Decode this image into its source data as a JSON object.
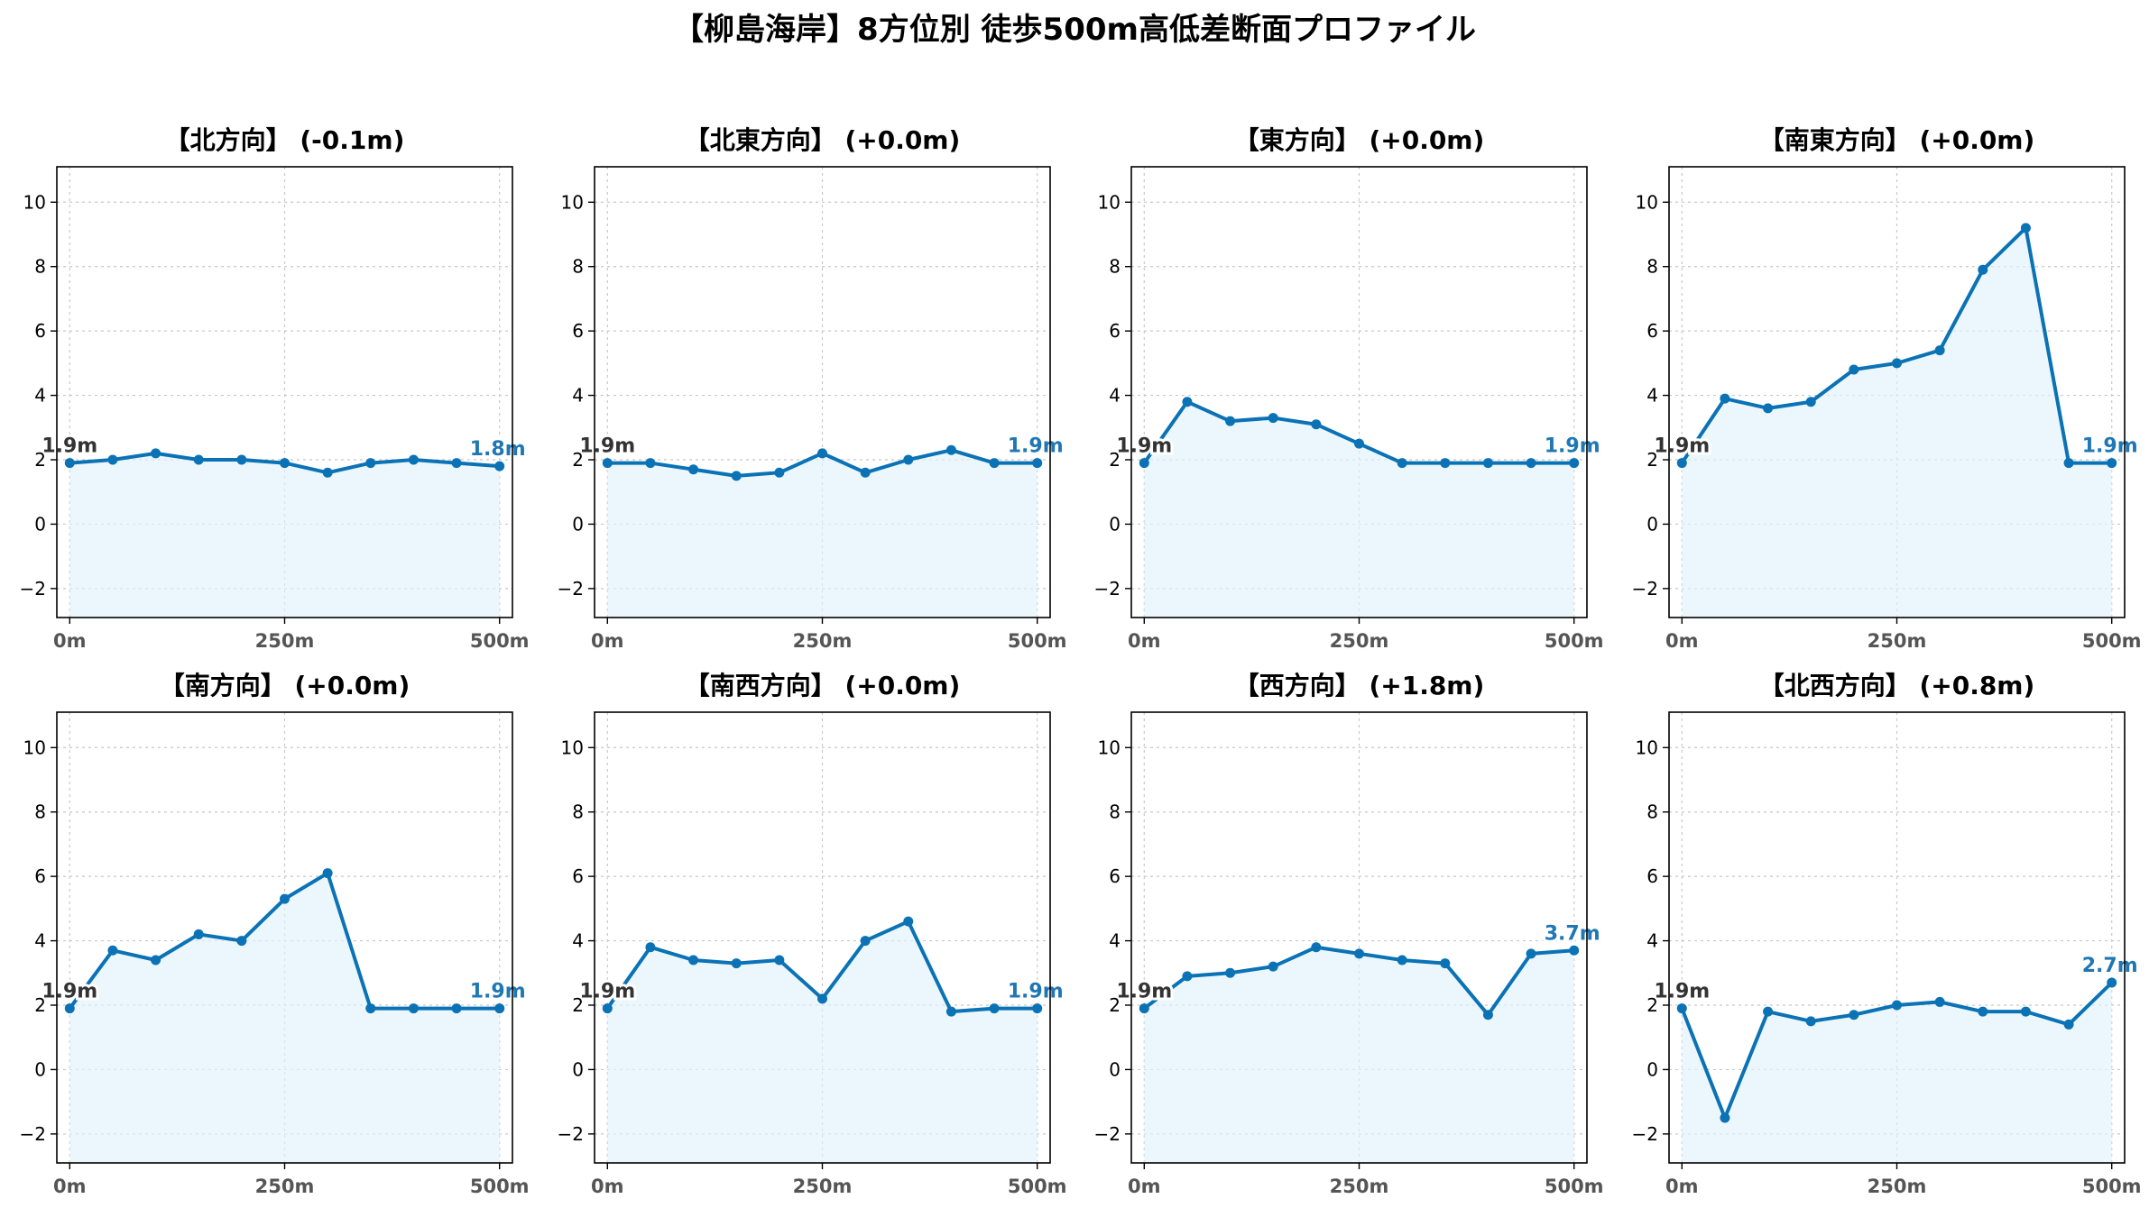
{
  "title": "【柳島海岸】8方位別 徒歩500m高低差断面プロファイル",
  "chart_data": [
    {
      "type": "line",
      "title": "【北方向】 (-0.1m)",
      "x": [
        0,
        50,
        100,
        150,
        200,
        250,
        300,
        350,
        400,
        450,
        500
      ],
      "values": [
        1.9,
        2.0,
        2.2,
        2.0,
        2.0,
        1.9,
        1.6,
        1.9,
        2.0,
        1.9,
        1.8
      ],
      "start_label": "1.9m",
      "end_label": "1.8m",
      "xticks": [
        "0m",
        "250m",
        "500m"
      ],
      "yticks": [
        "−2",
        "0",
        "2",
        "4",
        "6",
        "8",
        "10"
      ],
      "ylim": [
        -2.9,
        11.1
      ],
      "xlim": [
        -15,
        515
      ],
      "grid": true
    },
    {
      "type": "line",
      "title": "【北東方向】 (+0.0m)",
      "x": [
        0,
        50,
        100,
        150,
        200,
        250,
        300,
        350,
        400,
        450,
        500
      ],
      "values": [
        1.9,
        1.9,
        1.7,
        1.5,
        1.6,
        2.2,
        1.6,
        2.0,
        2.3,
        1.9,
        1.9
      ],
      "start_label": "1.9m",
      "end_label": "1.9m",
      "xticks": [
        "0m",
        "250m",
        "500m"
      ],
      "yticks": [
        "−2",
        "0",
        "2",
        "4",
        "6",
        "8",
        "10"
      ],
      "ylim": [
        -2.9,
        11.1
      ],
      "xlim": [
        -15,
        515
      ],
      "grid": true
    },
    {
      "type": "line",
      "title": "【東方向】 (+0.0m)",
      "x": [
        0,
        50,
        100,
        150,
        200,
        250,
        300,
        350,
        400,
        450,
        500
      ],
      "values": [
        1.9,
        3.8,
        3.2,
        3.3,
        3.1,
        2.5,
        1.9,
        1.9,
        1.9,
        1.9,
        1.9
      ],
      "start_label": "1.9m",
      "end_label": "1.9m",
      "xticks": [
        "0m",
        "250m",
        "500m"
      ],
      "yticks": [
        "−2",
        "0",
        "2",
        "4",
        "6",
        "8",
        "10"
      ],
      "ylim": [
        -2.9,
        11.1
      ],
      "xlim": [
        -15,
        515
      ],
      "grid": true
    },
    {
      "type": "line",
      "title": "【南東方向】 (+0.0m)",
      "x": [
        0,
        50,
        100,
        150,
        200,
        250,
        300,
        350,
        400,
        450,
        500
      ],
      "values": [
        1.9,
        3.9,
        3.6,
        3.8,
        4.8,
        5.0,
        5.4,
        7.9,
        9.2,
        1.9,
        1.9
      ],
      "start_label": "1.9m",
      "end_label": "1.9m",
      "xticks": [
        "0m",
        "250m",
        "500m"
      ],
      "yticks": [
        "−2",
        "0",
        "2",
        "4",
        "6",
        "8",
        "10"
      ],
      "ylim": [
        -2.9,
        11.1
      ],
      "xlim": [
        -15,
        515
      ],
      "grid": true
    },
    {
      "type": "line",
      "title": "【南方向】 (+0.0m)",
      "x": [
        0,
        50,
        100,
        150,
        200,
        250,
        300,
        350,
        400,
        450,
        500
      ],
      "values": [
        1.9,
        3.7,
        3.4,
        4.2,
        4.0,
        5.3,
        6.1,
        1.9,
        1.9,
        1.9,
        1.9
      ],
      "start_label": "1.9m",
      "end_label": "1.9m",
      "xticks": [
        "0m",
        "250m",
        "500m"
      ],
      "yticks": [
        "−2",
        "0",
        "2",
        "4",
        "6",
        "8",
        "10"
      ],
      "ylim": [
        -2.9,
        11.1
      ],
      "xlim": [
        -15,
        515
      ],
      "grid": true
    },
    {
      "type": "line",
      "title": "【南西方向】 (+0.0m)",
      "x": [
        0,
        50,
        100,
        150,
        200,
        250,
        300,
        350,
        400,
        450,
        500
      ],
      "values": [
        1.9,
        3.8,
        3.4,
        3.3,
        3.4,
        2.2,
        4.0,
        4.6,
        1.8,
        1.9,
        1.9
      ],
      "start_label": "1.9m",
      "end_label": "1.9m",
      "xticks": [
        "0m",
        "250m",
        "500m"
      ],
      "yticks": [
        "−2",
        "0",
        "2",
        "4",
        "6",
        "8",
        "10"
      ],
      "ylim": [
        -2.9,
        11.1
      ],
      "xlim": [
        -15,
        515
      ],
      "grid": true
    },
    {
      "type": "line",
      "title": "【西方向】 (+1.8m)",
      "x": [
        0,
        50,
        100,
        150,
        200,
        250,
        300,
        350,
        400,
        450,
        500
      ],
      "values": [
        1.9,
        2.9,
        3.0,
        3.2,
        3.8,
        3.6,
        3.4,
        3.3,
        1.7,
        3.6,
        3.7
      ],
      "start_label": "1.9m",
      "end_label": "3.7m",
      "xticks": [
        "0m",
        "250m",
        "500m"
      ],
      "yticks": [
        "−2",
        "0",
        "2",
        "4",
        "6",
        "8",
        "10"
      ],
      "ylim": [
        -2.9,
        11.1
      ],
      "xlim": [
        -15,
        515
      ],
      "grid": true
    },
    {
      "type": "line",
      "title": "【北西方向】 (+0.8m)",
      "x": [
        0,
        50,
        100,
        150,
        200,
        250,
        300,
        350,
        400,
        450,
        500
      ],
      "values": [
        1.9,
        -1.5,
        1.8,
        1.5,
        1.7,
        2.0,
        2.1,
        1.8,
        1.8,
        1.4,
        2.7
      ],
      "start_label": "1.9m",
      "end_label": "2.7m",
      "xticks": [
        "0m",
        "250m",
        "500m"
      ],
      "yticks": [
        "−2",
        "0",
        "2",
        "4",
        "6",
        "8",
        "10"
      ],
      "ylim": [
        -2.9,
        11.1
      ],
      "xlim": [
        -15,
        515
      ],
      "grid": true
    }
  ]
}
